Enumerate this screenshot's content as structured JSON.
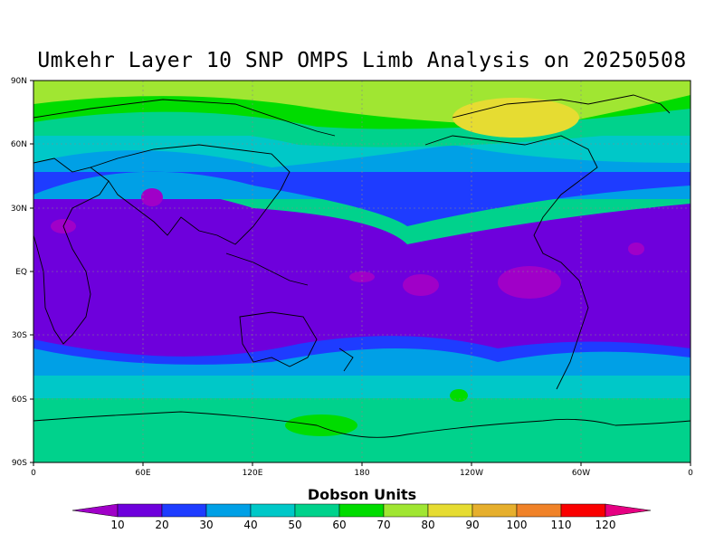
{
  "title": "Umkehr Layer 10 SNP OMPS Limb Analysis on 20250508",
  "axes": {
    "y_ticks": [
      "90N",
      "60N",
      "30N",
      "EQ",
      "30S",
      "60S",
      "90S"
    ],
    "x_ticks": [
      "0",
      "60E",
      "120E",
      "180",
      "120W",
      "60W",
      "0"
    ]
  },
  "colorbar": {
    "title": "Dobson Units",
    "labels": [
      "10",
      "20",
      "30",
      "40",
      "50",
      "60",
      "70",
      "80",
      "90",
      "100",
      "110",
      "120"
    ],
    "colors": [
      "#a000c8",
      "#6e00dc",
      "#1e3cff",
      "#00a0e6",
      "#00c8c8",
      "#00d28c",
      "#00dc00",
      "#a0e632",
      "#e6dc32",
      "#e6af2d",
      "#f08228",
      "#fa0000",
      "#e60082"
    ]
  },
  "chart_data": {
    "type": "heatmap",
    "title": "Umkehr Layer 10 SNP OMPS Limb Analysis on 20250508",
    "variable": "Dobson Units",
    "lon_range": [
      0,
      360
    ],
    "lat_range": [
      -90,
      90
    ],
    "levels": [
      10,
      20,
      30,
      40,
      50,
      60,
      70,
      80,
      90,
      100,
      110,
      120
    ],
    "regions": [
      {
        "desc": "tropics",
        "lat_range": [
          -30,
          30
        ],
        "value_du": "10-20"
      },
      {
        "desc": "subtropics",
        "value_du": "20-40"
      },
      {
        "desc": "mid-latitudes",
        "value_du": "40-60"
      },
      {
        "desc": "northern high latitudes",
        "value_du": "60-80"
      },
      {
        "desc": "arctic maximum near 60N-80N 240-270E",
        "value_du": "80-90"
      },
      {
        "desc": "antarctic",
        "value_du": "50-60"
      }
    ]
  }
}
